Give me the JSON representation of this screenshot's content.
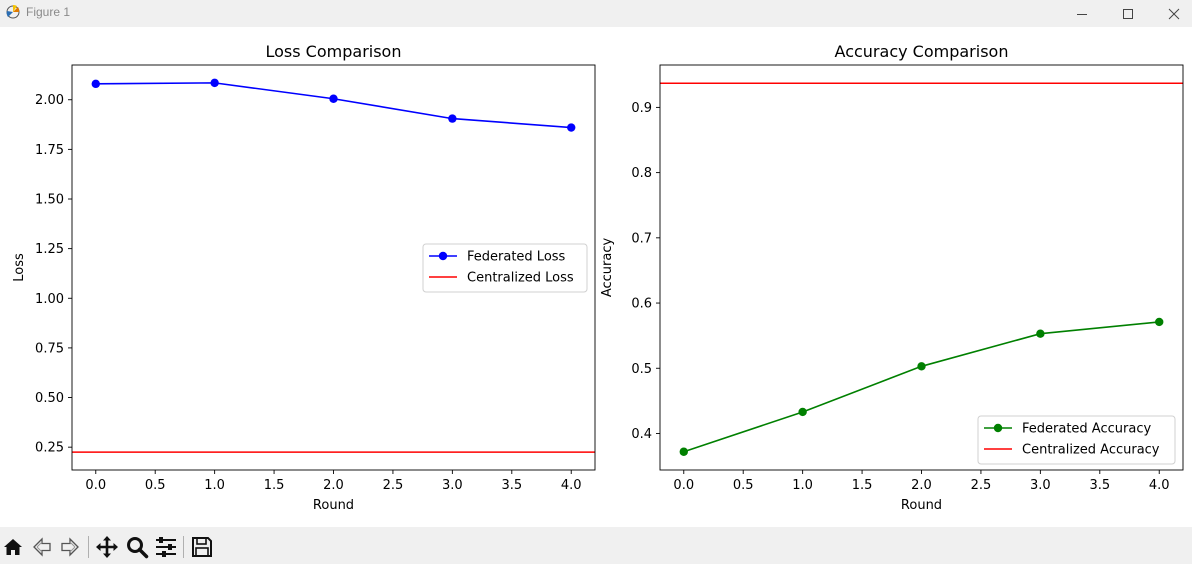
{
  "window": {
    "title": "Figure 1",
    "controls": [
      "minimize-icon",
      "maximize-icon",
      "close-icon"
    ]
  },
  "toolbar": {
    "icons": [
      "home-icon",
      "back-arrow-icon",
      "forward-arrow-icon",
      "pan-icon",
      "zoom-icon",
      "configure-subplots-icon",
      "save-icon"
    ]
  },
  "chart_data": [
    {
      "type": "line",
      "title": "Loss Comparison",
      "xlabel": "Round",
      "ylabel": "Loss",
      "xlim": [
        -0.2,
        4.2
      ],
      "ylim": [
        0.135,
        2.175
      ],
      "xticks": [
        "0.0",
        "0.5",
        "1.0",
        "1.5",
        "2.0",
        "2.5",
        "3.0",
        "3.5",
        "4.0"
      ],
      "yticks": [
        "0.25",
        "0.50",
        "0.75",
        "1.00",
        "1.25",
        "1.50",
        "1.75",
        "2.00"
      ],
      "grid": false,
      "legend_position": "center-right",
      "series": [
        {
          "name": "Federated Loss",
          "kind": "line-marker",
          "color": "#0000ff",
          "x": [
            0,
            1,
            2,
            3,
            4
          ],
          "values": [
            2.08,
            2.085,
            2.005,
            1.905,
            1.86
          ]
        },
        {
          "name": "Centralized Loss",
          "kind": "hline",
          "color": "#ff0000",
          "value": 0.225
        }
      ]
    },
    {
      "type": "line",
      "title": "Accuracy Comparison",
      "xlabel": "Round",
      "ylabel": "Accuracy",
      "xlim": [
        -0.2,
        4.2
      ],
      "ylim": [
        0.344,
        0.965
      ],
      "xticks": [
        "0.0",
        "0.5",
        "1.0",
        "1.5",
        "2.0",
        "2.5",
        "3.0",
        "3.5",
        "4.0"
      ],
      "yticks": [
        "0.4",
        "0.5",
        "0.6",
        "0.7",
        "0.8",
        "0.9"
      ],
      "grid": false,
      "legend_position": "lower-right",
      "series": [
        {
          "name": "Federated Accuracy",
          "kind": "line-marker",
          "color": "#008000",
          "x": [
            0,
            1,
            2,
            3,
            4
          ],
          "values": [
            0.372,
            0.433,
            0.503,
            0.553,
            0.571
          ]
        },
        {
          "name": "Centralized Accuracy",
          "kind": "hline",
          "color": "#ff0000",
          "value": 0.937
        }
      ]
    }
  ]
}
